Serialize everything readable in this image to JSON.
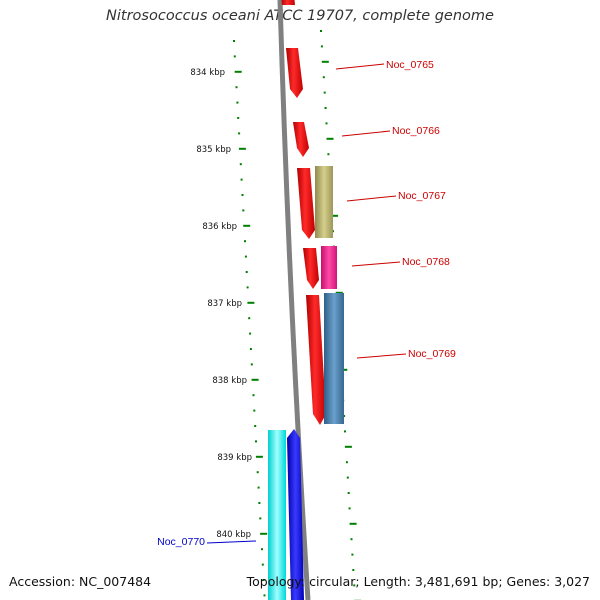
{
  "title": "Nitrosococcus oceani ATCC 19707, complete genome",
  "accession": "Accession: NC_007484",
  "topology": "Topology: circular; Length: 3,481,691 bp; Genes: 3,027",
  "scale_labels": [
    "834 kbp",
    "835 kbp",
    "836 kbp",
    "837 kbp",
    "838 kbp",
    "839 kbp",
    "840 kbp"
  ],
  "genes": [
    {
      "name": "Noc_0765",
      "color": "#ff0000"
    },
    {
      "name": "Noc_0766",
      "color": "#ff0000"
    },
    {
      "name": "Noc_0767",
      "color": "#ff0000",
      "secondary_color": "#bdb76b"
    },
    {
      "name": "Noc_0768",
      "color": "#ff0000",
      "secondary_color": "#ff1493"
    },
    {
      "name": "Noc_0769",
      "color": "#ff0000",
      "secondary_color": "#4682b4"
    },
    {
      "name": "Noc_0770",
      "color": "#0000ff",
      "secondary_color": "#00ffff"
    }
  ],
  "colors": {
    "label_forward": "#cc0000",
    "label_reverse": "#0000cc",
    "ticks": "#008000",
    "backbone": "#808080"
  }
}
